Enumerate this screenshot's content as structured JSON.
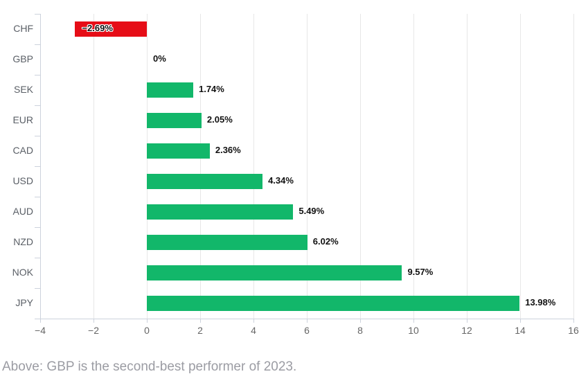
{
  "chart_data": {
    "type": "bar",
    "orientation": "horizontal",
    "title": "",
    "categories": [
      "CHF",
      "GBP",
      "SEK",
      "EUR",
      "CAD",
      "USD",
      "AUD",
      "NZD",
      "NOK",
      "JPY"
    ],
    "values": [
      -2.69,
      0,
      1.74,
      2.05,
      2.36,
      4.34,
      5.49,
      6.02,
      9.57,
      13.98
    ],
    "value_labels": [
      "−2.69%",
      "0%",
      "1.74%",
      "2.05%",
      "2.36%",
      "4.34%",
      "5.49%",
      "6.02%",
      "9.57%",
      "13.98%"
    ],
    "bar_colors": [
      "#e60d17",
      "#12b76a",
      "#12b76a",
      "#12b76a",
      "#12b76a",
      "#12b76a",
      "#12b76a",
      "#12b76a",
      "#12b76a",
      "#12b76a"
    ],
    "xlim": [
      -4,
      16
    ],
    "x_ticks": [
      -4,
      -2,
      0,
      2,
      4,
      6,
      8,
      10,
      12,
      14,
      16
    ],
    "x_tick_labels": [
      "−4",
      "−2",
      "0",
      "2",
      "4",
      "6",
      "8",
      "10",
      "12",
      "14",
      "16"
    ],
    "xlabel": "",
    "ylabel": "",
    "grid": true,
    "legend": false
  },
  "colors": {
    "positive_bar": "#12b76a",
    "negative_bar": "#e60d17",
    "gridline": "#e7e7e7",
    "axis_line": "#ccd2dc",
    "tick_label": "#666666",
    "category_label": "#5a5f66",
    "value_label": "#111111",
    "caption": "#9b9ca3",
    "background": "#ffffff"
  },
  "caption": "Above: GBP is the second-best performer of 2023."
}
